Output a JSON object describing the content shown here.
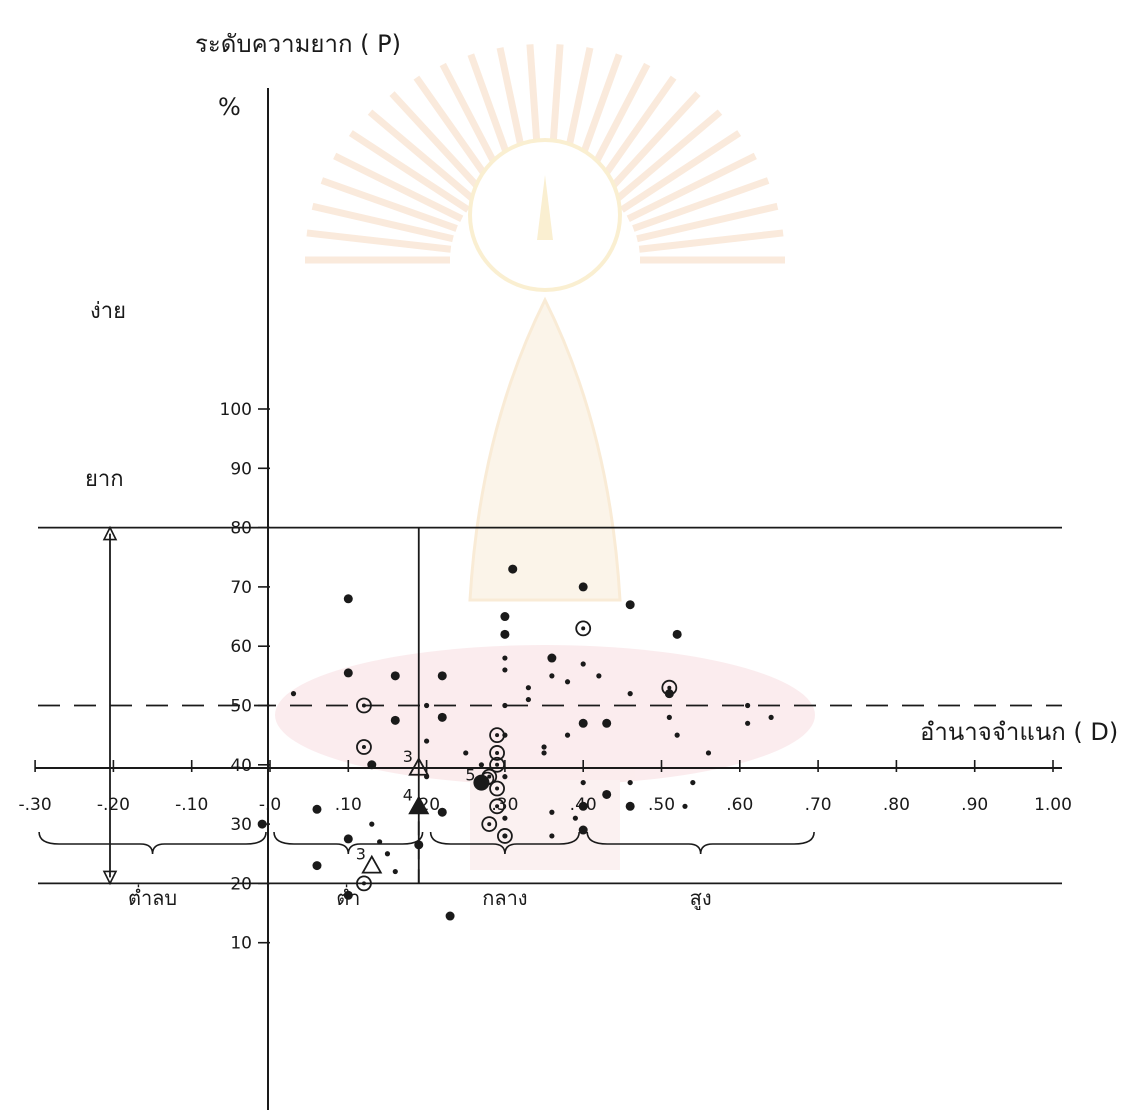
{
  "chart_data": {
    "type": "scatter",
    "ylabel": "ระดับความยาก ( P)",
    "y_unit": "%",
    "xlabel": "อำนาจจำแนก ( D)",
    "xlim": [
      -0.3,
      1.0
    ],
    "ylim": [
      0,
      100
    ],
    "x_ticks": [
      "-.30",
      "-.20",
      "-.10",
      "-.0",
      ".10",
      ".20",
      ".30",
      ".40",
      ".50",
      ".60",
      ".70",
      ".80",
      ".90",
      "1.00"
    ],
    "y_ticks": [
      "10",
      "20",
      "30",
      "40",
      "50",
      "60",
      "70",
      "80",
      "90",
      "100"
    ],
    "reference_lines": {
      "easy_limit": 80,
      "hard_limit": 20,
      "difficulty_midline": 50,
      "discrimination_cutoff": 0.19
    },
    "band_labels": {
      "easy": "ง่าย",
      "hard": "ยาก"
    },
    "discrimination_zones": [
      {
        "label": "ต่ำลบ",
        "from": -0.3,
        "to": 0.0
      },
      {
        "label": "ต่ำ",
        "from": 0.0,
        "to": 0.2
      },
      {
        "label": "กลาง",
        "from": 0.2,
        "to": 0.4
      },
      {
        "label": "สูง",
        "from": 0.4,
        "to": 0.7
      }
    ],
    "series": [
      {
        "marker": "dot-large",
        "points": [
          [
            -0.01,
            30
          ],
          [
            0.06,
            32.5
          ],
          [
            0.06,
            23
          ],
          [
            0.1,
            68
          ],
          [
            0.1,
            55.5
          ],
          [
            0.1,
            27.5
          ],
          [
            0.16,
            55
          ],
          [
            0.16,
            47.5
          ],
          [
            0.13,
            40
          ],
          [
            0.22,
            55
          ],
          [
            0.22,
            48
          ],
          [
            0.22,
            32
          ],
          [
            0.31,
            73
          ],
          [
            0.3,
            65
          ],
          [
            0.3,
            62
          ],
          [
            0.36,
            58
          ],
          [
            0.4,
            70
          ],
          [
            0.4,
            47
          ],
          [
            0.4,
            33
          ],
          [
            0.4,
            29
          ],
          [
            0.43,
            35
          ],
          [
            0.43,
            47
          ],
          [
            0.46,
            67
          ],
          [
            0.46,
            33
          ],
          [
            0.52,
            62
          ],
          [
            0.51,
            52
          ],
          [
            0.19,
            26.5
          ],
          [
            0.23,
            14.5
          ],
          [
            0.1,
            18
          ]
        ]
      },
      {
        "marker": "dot-small",
        "points": [
          [
            0.03,
            52
          ],
          [
            0.13,
            30
          ],
          [
            0.14,
            27
          ],
          [
            0.15,
            25
          ],
          [
            0.16,
            22
          ],
          [
            0.2,
            50
          ],
          [
            0.2,
            44
          ],
          [
            0.2,
            38
          ],
          [
            0.25,
            42
          ],
          [
            0.3,
            58
          ],
          [
            0.3,
            56
          ],
          [
            0.3,
            50
          ],
          [
            0.3,
            38
          ],
          [
            0.3,
            31
          ],
          [
            0.3,
            28
          ],
          [
            0.33,
            51
          ],
          [
            0.33,
            53
          ],
          [
            0.35,
            43
          ],
          [
            0.35,
            42
          ],
          [
            0.36,
            32
          ],
          [
            0.36,
            28
          ],
          [
            0.36,
            55
          ],
          [
            0.38,
            54
          ],
          [
            0.38,
            45
          ],
          [
            0.39,
            31
          ],
          [
            0.4,
            57
          ],
          [
            0.42,
            55
          ],
          [
            0.46,
            37
          ],
          [
            0.51,
            48
          ],
          [
            0.52,
            45
          ],
          [
            0.53,
            33
          ],
          [
            0.56,
            42
          ],
          [
            0.61,
            50
          ],
          [
            0.61,
            47
          ],
          [
            0.64,
            48
          ],
          [
            0.54,
            37
          ],
          [
            0.46,
            52
          ],
          [
            0.4,
            37
          ],
          [
            0.3,
            45
          ],
          [
            0.27,
            40
          ]
        ]
      },
      {
        "marker": "circle-dot",
        "points": [
          [
            0.12,
            50
          ],
          [
            0.12,
            43
          ],
          [
            0.29,
            45
          ],
          [
            0.29,
            42
          ],
          [
            0.29,
            40
          ],
          [
            0.28,
            38
          ],
          [
            0.29,
            36
          ],
          [
            0.29,
            33
          ],
          [
            0.28,
            30
          ],
          [
            0.3,
            28
          ],
          [
            0.4,
            63
          ],
          [
            0.51,
            53
          ],
          [
            0.12,
            20
          ]
        ]
      },
      {
        "marker": "triangle",
        "points": [
          [
            0.19,
            39.5
          ],
          [
            0.13,
            23
          ]
        ],
        "labels": [
          "3",
          "3"
        ]
      },
      {
        "marker": "triangle-filled",
        "points": [
          [
            0.19,
            33
          ]
        ],
        "labels": [
          "4"
        ]
      },
      {
        "marker": "cluster",
        "points": [
          [
            0.27,
            37
          ]
        ],
        "labels": [
          "5"
        ]
      }
    ]
  }
}
